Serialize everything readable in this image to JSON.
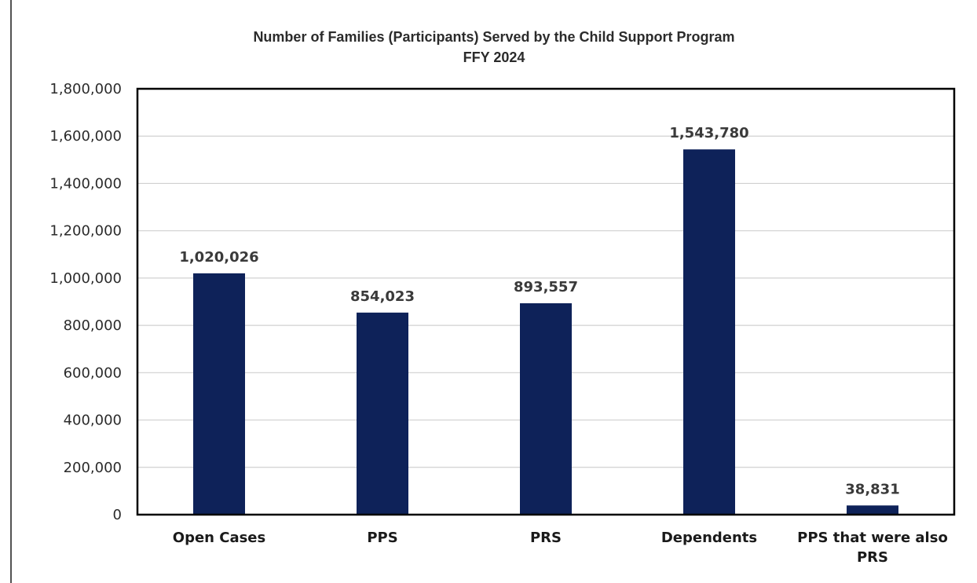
{
  "header_fragment": "g... ... ... ... ... ...(... ...p...) ... ... ... ... ... ... ...pp... ...g...",
  "chart_data": {
    "type": "bar",
    "title": "Number of Families (Participants) Served by the Child Support Program",
    "subtitle": "FFY 2024",
    "categories": [
      "Open Cases",
      "PPS",
      "PRS",
      "Dependents",
      "PPS that were also PRS"
    ],
    "category_lines": [
      [
        "Open Cases"
      ],
      [
        "PPS"
      ],
      [
        "PRS"
      ],
      [
        "Dependents"
      ],
      [
        "PPS that were also",
        "PRS"
      ]
    ],
    "values": [
      1020026,
      854023,
      893557,
      1543780,
      38831
    ],
    "data_labels": [
      "1,020,026",
      "854,023",
      "893,557",
      "1,543,780",
      "38,831"
    ],
    "ylim": [
      0,
      1800000
    ],
    "yticks": [
      0,
      200000,
      400000,
      600000,
      800000,
      1000000,
      1200000,
      1400000,
      1600000,
      1800000
    ],
    "ytick_labels": [
      "0",
      "200,000",
      "400,000",
      "600,000",
      "800,000",
      "1,000,000",
      "1,200,000",
      "1,400,000",
      "1,600,000",
      "1,800,000"
    ],
    "xlabel": "",
    "ylabel": "",
    "grid": true,
    "legend": "none",
    "bar_color": "#0e2259"
  }
}
